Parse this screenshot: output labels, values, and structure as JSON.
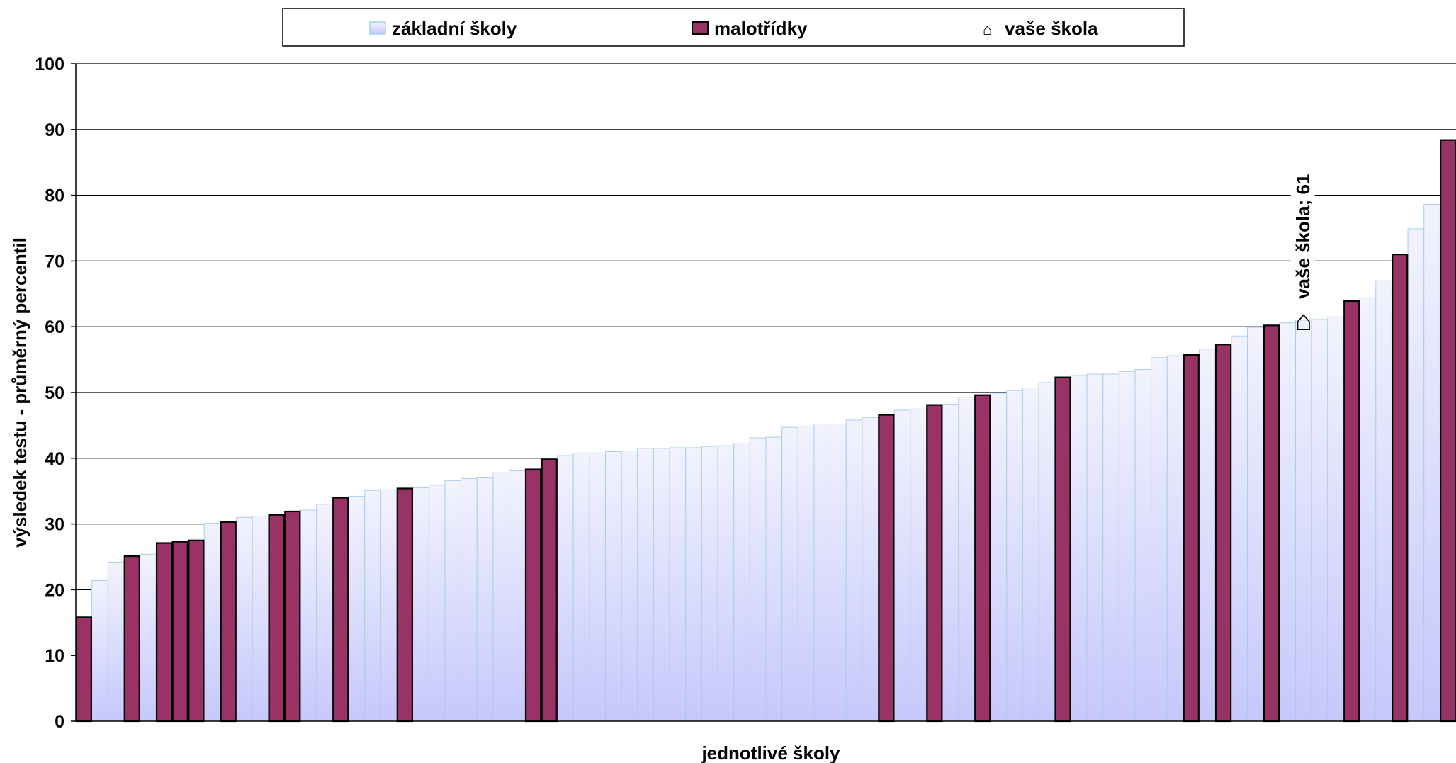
{
  "chart_data": {
    "type": "bar",
    "title": "",
    "xlabel": "jednotlivé školy",
    "ylabel": "výsledek testu - průměrný percentil",
    "ylim": [
      0,
      100
    ],
    "yticks": [
      "0",
      "10",
      "20",
      "30",
      "40",
      "50",
      "60",
      "70",
      "80",
      "90",
      "100"
    ],
    "grid": true,
    "legend": {
      "placement": "top",
      "entries": [
        "základní školy",
        "malotřídky",
        "vaše škola"
      ],
      "marker_glyph": "⌂"
    },
    "colors": {
      "zakladni_fill_top": "#f2f3fd",
      "zakladni_fill_bottom": "#c6c8fb",
      "zakladni_stroke": "#a9cdee",
      "malotridky_fill": "#993366",
      "malotridky_stroke": "#000000",
      "grid": "#000000"
    },
    "series": [
      {
        "name": "výsledek testu",
        "values": [
          15.8,
          21.4,
          24.2,
          25.1,
          25.4,
          27.1,
          27.3,
          27.5,
          30.1,
          30.3,
          31.0,
          31.2,
          31.4,
          31.9,
          32.1,
          33.0,
          34.0,
          34.2,
          35.1,
          35.2,
          35.4,
          35.5,
          35.9,
          36.6,
          36.9,
          37.0,
          37.8,
          38.1,
          38.3,
          39.8,
          40.4,
          40.8,
          40.8,
          41.0,
          41.1,
          41.5,
          41.5,
          41.6,
          41.6,
          41.8,
          41.9,
          42.3,
          43.1,
          43.2,
          44.7,
          44.9,
          45.2,
          45.2,
          45.8,
          46.2,
          46.6,
          47.3,
          47.5,
          48.1,
          48.2,
          49.3,
          49.6,
          49.9,
          50.3,
          50.7,
          51.5,
          52.3,
          52.6,
          52.8,
          52.8,
          53.2,
          53.5,
          55.3,
          55.6,
          55.7,
          56.6,
          57.3,
          58.6,
          59.9,
          60.2,
          60.6,
          61.0,
          61.1,
          61.5,
          63.9,
          64.4,
          67.0,
          71.0,
          74.9,
          78.6,
          88.4
        ],
        "type_per_bar": [
          "m",
          "z",
          "z",
          "m",
          "z",
          "m",
          "m",
          "m",
          "z",
          "m",
          "z",
          "z",
          "m",
          "m",
          "z",
          "z",
          "m",
          "z",
          "z",
          "z",
          "m",
          "z",
          "z",
          "z",
          "z",
          "z",
          "z",
          "z",
          "m",
          "m",
          "z",
          "z",
          "z",
          "z",
          "z",
          "z",
          "z",
          "z",
          "z",
          "z",
          "z",
          "z",
          "z",
          "z",
          "z",
          "z",
          "z",
          "z",
          "z",
          "z",
          "m",
          "z",
          "z",
          "m",
          "z",
          "z",
          "m",
          "z",
          "z",
          "z",
          "z",
          "m",
          "z",
          "z",
          "z",
          "z",
          "z",
          "z",
          "z",
          "m",
          "z",
          "m",
          "z",
          "z",
          "m",
          "z",
          "z",
          "z",
          "z",
          "m",
          "z",
          "z",
          "m",
          "z",
          "z",
          "m"
        ]
      }
    ],
    "annotation": {
      "label": "vaše škola; 61",
      "value": 61,
      "bar_number": 77
    }
  }
}
